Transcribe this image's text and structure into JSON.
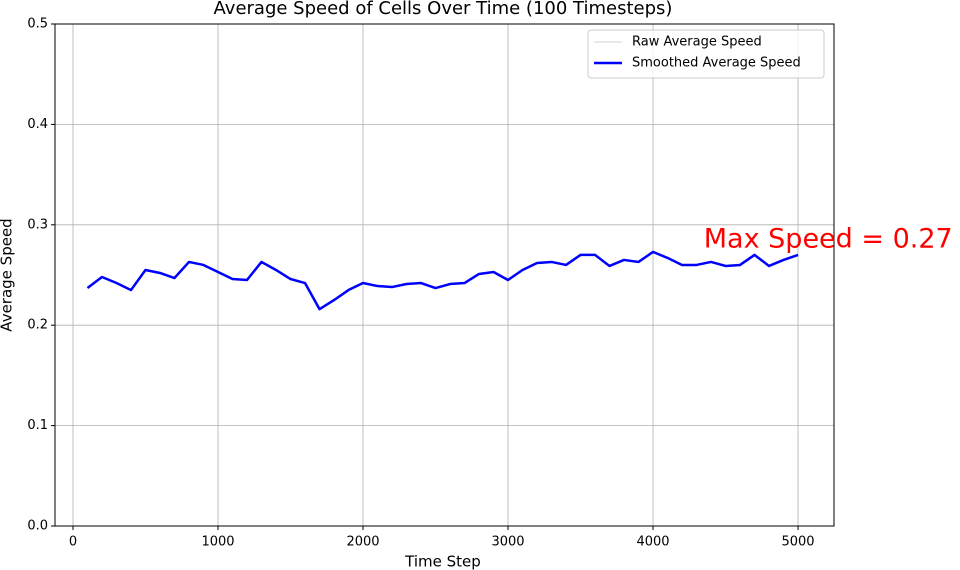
{
  "chart_data": {
    "type": "line",
    "title": "Average Speed of Cells Over Time (100 Timesteps)",
    "x_label": "Time Step",
    "y_label": "Average Speed",
    "x": [
      100,
      200,
      300,
      400,
      500,
      600,
      700,
      800,
      900,
      1000,
      1100,
      1200,
      1300,
      1400,
      1500,
      1600,
      1700,
      1800,
      1900,
      2000,
      2100,
      2200,
      2300,
      2400,
      2500,
      2600,
      2700,
      2800,
      2900,
      3000,
      3100,
      3200,
      3300,
      3400,
      3500,
      3600,
      3700,
      3800,
      3900,
      4000,
      4100,
      4200,
      4300,
      4400,
      4500,
      4600,
      4700,
      4800,
      4900,
      5000
    ],
    "series": [
      {
        "name": "Raw Average Speed",
        "color": "#d3d3d3",
        "width": 1,
        "values": [
          null,
          null,
          null,
          null,
          null,
          null,
          null,
          null,
          null,
          null,
          null,
          null,
          null,
          null,
          null,
          null,
          null,
          null,
          null,
          null,
          null,
          null,
          null,
          null,
          null,
          null,
          null,
          null,
          null,
          null,
          null,
          null,
          null,
          null,
          null,
          null,
          null,
          null,
          null,
          null,
          null,
          null,
          null,
          null,
          null,
          null,
          null,
          null,
          null,
          null
        ]
      },
      {
        "name": "Smoothed Average Speed",
        "color": "#0000ff",
        "width": 2.5,
        "values": [
          0.237,
          0.248,
          0.242,
          0.235,
          0.255,
          0.252,
          0.247,
          0.263,
          0.26,
          0.253,
          0.246,
          0.245,
          0.263,
          0.255,
          0.246,
          0.242,
          0.216,
          0.225,
          0.235,
          0.242,
          0.239,
          0.238,
          0.241,
          0.242,
          0.237,
          0.241,
          0.242,
          0.251,
          0.253,
          0.245,
          0.255,
          0.262,
          0.263,
          0.26,
          0.27,
          0.27,
          0.259,
          0.265,
          0.263,
          0.273,
          0.267,
          0.26,
          0.26,
          0.263,
          0.259,
          0.26,
          0.27,
          0.259,
          0.265,
          0.27
        ]
      }
    ],
    "annotation": {
      "text": "Max Speed = 0.27",
      "color": "#ff0000",
      "x": 4350,
      "y": 0.285
    },
    "xlim": [
      -124,
      5248
    ],
    "ylim": [
      0,
      0.5
    ],
    "xticks": [
      0,
      1000,
      2000,
      3000,
      4000,
      5000
    ],
    "yticks": [
      {
        "value": 0,
        "label": "0.0"
      },
      0.1,
      0.2,
      0.3,
      0.4,
      0.5
    ],
    "grid": true,
    "legend": "upper right"
  }
}
